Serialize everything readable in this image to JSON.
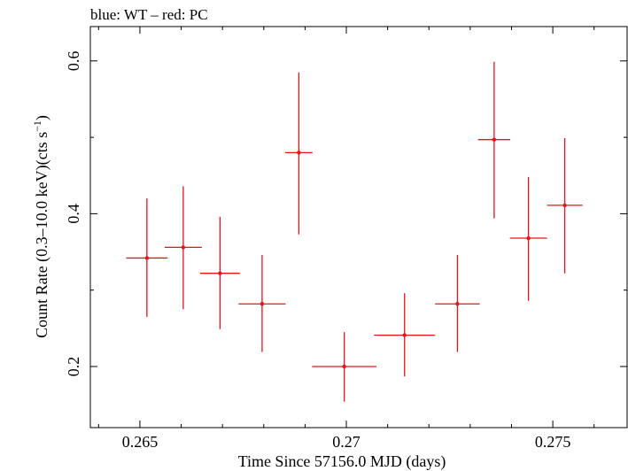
{
  "chart_data": {
    "type": "scatter",
    "title": "blue: WT – red: PC",
    "xlabel": "Time Since 57156.0 MJD (days)",
    "ylabel": "Count Rate (0.3–10.0 keV)(cts s",
    "ylabel_sup": "−1",
    "ylabel_close": ")",
    "xlim": [
      0.2638,
      0.2768
    ],
    "ylim": [
      0.12,
      0.645
    ],
    "x_ticks": [
      0.265,
      0.27,
      0.275
    ],
    "x_tick_labels": [
      "0.265",
      "0.27",
      "0.275"
    ],
    "y_ticks": [
      0.2,
      0.4,
      0.6
    ],
    "y_tick_labels": [
      "0.2",
      "0.4",
      "0.6"
    ],
    "grid": false,
    "series": [
      {
        "color": "#e8141a",
        "points": [
          {
            "x": 0.26517,
            "xerr": 0.0005,
            "y": 0.342,
            "ylo": 0.265,
            "yhi": 0.42
          },
          {
            "x": 0.26605,
            "xerr": 0.00045,
            "y": 0.356,
            "ylo": 0.275,
            "yhi": 0.436
          },
          {
            "x": 0.26694,
            "xerr": 0.00048,
            "y": 0.322,
            "ylo": 0.249,
            "yhi": 0.396
          },
          {
            "x": 0.26796,
            "xerr": 0.00057,
            "y": 0.282,
            "ylo": 0.219,
            "yhi": 0.346
          },
          {
            "x": 0.26885,
            "xerr": 0.00033,
            "y": 0.48,
            "ylo": 0.373,
            "yhi": 0.585
          },
          {
            "x": 0.26995,
            "xerr": 0.00078,
            "y": 0.2,
            "ylo": 0.154,
            "yhi": 0.245
          },
          {
            "x": 0.27141,
            "xerr": 0.00074,
            "y": 0.241,
            "ylo": 0.187,
            "yhi": 0.296
          },
          {
            "x": 0.27269,
            "xerr": 0.00054,
            "y": 0.282,
            "ylo": 0.219,
            "yhi": 0.346
          },
          {
            "x": 0.27358,
            "xerr": 0.00039,
            "y": 0.497,
            "ylo": 0.394,
            "yhi": 0.599
          },
          {
            "x": 0.27441,
            "xerr": 0.00045,
            "y": 0.368,
            "ylo": 0.286,
            "yhi": 0.448
          },
          {
            "x": 0.27529,
            "xerr": 0.00043,
            "y": 0.411,
            "ylo": 0.322,
            "yhi": 0.499
          }
        ]
      }
    ]
  }
}
